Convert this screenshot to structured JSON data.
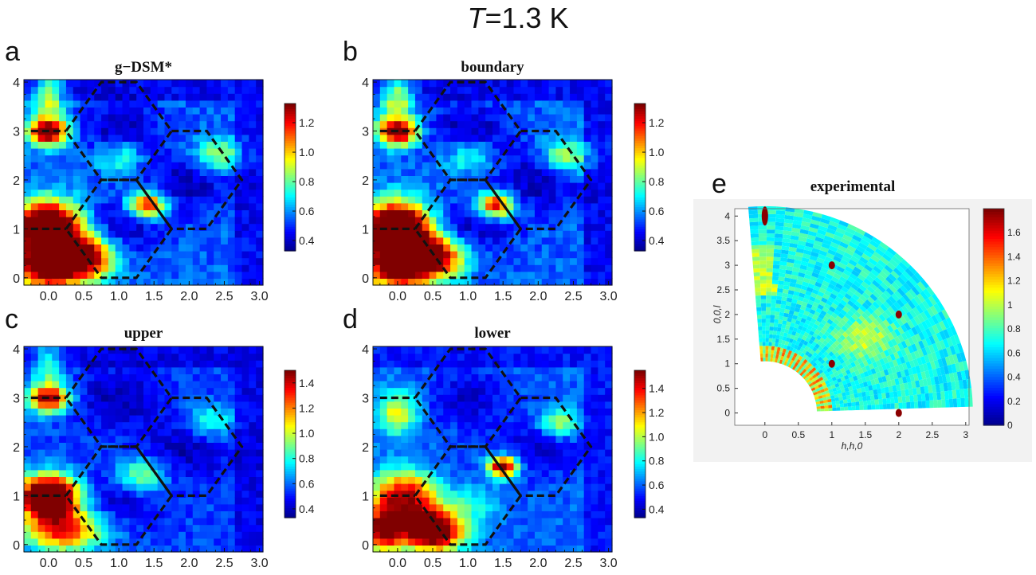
{
  "figure": {
    "title_italic": "T",
    "title_rest": "=1.3 K"
  },
  "colors": {
    "jet": [
      "#00008f",
      "#0000ff",
      "#0080ff",
      "#00ffff",
      "#80ff80",
      "#ffff00",
      "#ff8000",
      "#ff0000",
      "#800000"
    ],
    "hex_line": "#111111",
    "axis": "#111111"
  },
  "chart_data": [
    {
      "id": "a",
      "letter": "a",
      "title": "g−DSM*",
      "type": "heatmap",
      "xlim": [
        -0.35,
        3.05
      ],
      "ylim": [
        -0.15,
        4.05
      ],
      "xticks": [
        "0.0",
        "0.5",
        "1.0",
        "1.5",
        "2.0",
        "2.5",
        "3.0"
      ],
      "xtick_values": [
        0,
        0.5,
        1,
        1.5,
        2,
        2.5,
        3
      ],
      "yticks": [
        "0",
        "1",
        "2",
        "3",
        "4"
      ],
      "ytick_values": [
        0,
        1,
        2,
        3,
        4
      ],
      "colorbar": {
        "ticks": [
          "0.4",
          "0.6",
          "0.8",
          "1.0",
          "1.2"
        ],
        "tick_values": [
          0.4,
          0.6,
          0.8,
          1.0,
          1.2
        ],
        "range": [
          0.33,
          1.33
        ]
      },
      "peaks": [
        {
          "x": 0.0,
          "y": 1.0,
          "amp": 1.3,
          "sx": 0.32,
          "sy": 0.38
        },
        {
          "x": 0.0,
          "y": 0.2,
          "amp": 0.85,
          "sx": 0.35,
          "sy": 0.3
        },
        {
          "x": 0.55,
          "y": 0.45,
          "amp": 0.75,
          "sx": 0.3,
          "sy": 0.3
        },
        {
          "x": 0.0,
          "y": 3.0,
          "amp": 0.9,
          "sx": 0.2,
          "sy": 0.2
        },
        {
          "x": 1.4,
          "y": 1.5,
          "amp": 0.75,
          "sx": 0.18,
          "sy": 0.18
        },
        {
          "x": 2.4,
          "y": 2.5,
          "amp": 0.35,
          "sx": 0.25,
          "sy": 0.25
        },
        {
          "x": 0.0,
          "y": 3.7,
          "amp": 0.4,
          "sx": 0.15,
          "sy": 0.3
        },
        {
          "x": 1.0,
          "y": 2.5,
          "amp": 0.25,
          "sx": 0.25,
          "sy": 0.25
        }
      ],
      "baseline": 0.55
    },
    {
      "id": "b",
      "letter": "b",
      "title": "boundary",
      "type": "heatmap",
      "xlim": [
        -0.35,
        3.05
      ],
      "ylim": [
        -0.15,
        4.05
      ],
      "xticks": [
        "0.0",
        "0.5",
        "1.0",
        "1.5",
        "2.0",
        "2.5",
        "3.0"
      ],
      "xtick_values": [
        0,
        0.5,
        1,
        1.5,
        2,
        2.5,
        3
      ],
      "yticks": [
        "0",
        "1",
        "2",
        "3",
        "4"
      ],
      "ytick_values": [
        0,
        1,
        2,
        3,
        4
      ],
      "colorbar": {
        "ticks": [
          "0.4",
          "0.6",
          "0.8",
          "1.0",
          "1.2"
        ],
        "tick_values": [
          0.4,
          0.6,
          0.8,
          1.0,
          1.2
        ],
        "range": [
          0.33,
          1.33
        ]
      },
      "peaks": [
        {
          "x": 0.0,
          "y": 1.0,
          "amp": 1.3,
          "sx": 0.32,
          "sy": 0.38
        },
        {
          "x": 0.0,
          "y": 0.2,
          "amp": 0.85,
          "sx": 0.35,
          "sy": 0.3
        },
        {
          "x": 0.55,
          "y": 0.45,
          "amp": 0.75,
          "sx": 0.3,
          "sy": 0.3
        },
        {
          "x": 0.0,
          "y": 3.0,
          "amp": 0.9,
          "sx": 0.2,
          "sy": 0.2
        },
        {
          "x": 1.4,
          "y": 1.5,
          "amp": 0.75,
          "sx": 0.18,
          "sy": 0.18
        },
        {
          "x": 2.4,
          "y": 2.5,
          "amp": 0.35,
          "sx": 0.25,
          "sy": 0.25
        },
        {
          "x": 0.0,
          "y": 3.7,
          "amp": 0.4,
          "sx": 0.15,
          "sy": 0.3
        },
        {
          "x": 1.0,
          "y": 2.5,
          "amp": 0.25,
          "sx": 0.25,
          "sy": 0.25
        }
      ],
      "baseline": 0.55
    },
    {
      "id": "c",
      "letter": "c",
      "title": "upper",
      "type": "heatmap",
      "xlim": [
        -0.35,
        3.05
      ],
      "ylim": [
        -0.15,
        4.05
      ],
      "xticks": [
        "0.0",
        "0.5",
        "1.0",
        "1.5",
        "2.0",
        "2.5",
        "3.0"
      ],
      "xtick_values": [
        0,
        0.5,
        1,
        1.5,
        2,
        2.5,
        3
      ],
      "yticks": [
        "0",
        "1",
        "2",
        "3",
        "4"
      ],
      "ytick_values": [
        0,
        1,
        2,
        3,
        4
      ],
      "colorbar": {
        "ticks": [
          "0.4",
          "0.6",
          "0.8",
          "1.0",
          "1.2",
          "1.4"
        ],
        "tick_values": [
          0.4,
          0.6,
          0.8,
          1.0,
          1.2,
          1.4
        ],
        "range": [
          0.33,
          1.5
        ]
      },
      "peaks": [
        {
          "x": 0.0,
          "y": 1.0,
          "amp": 1.45,
          "sx": 0.3,
          "sy": 0.3
        },
        {
          "x": 0.2,
          "y": 0.3,
          "amp": 0.8,
          "sx": 0.4,
          "sy": 0.3
        },
        {
          "x": 0.0,
          "y": 3.0,
          "amp": 0.95,
          "sx": 0.2,
          "sy": 0.2
        },
        {
          "x": 1.3,
          "y": 1.4,
          "amp": 0.45,
          "sx": 0.25,
          "sy": 0.25
        },
        {
          "x": 2.3,
          "y": 2.5,
          "amp": 0.3,
          "sx": 0.25,
          "sy": 0.25
        },
        {
          "x": 0.0,
          "y": 3.7,
          "amp": 0.35,
          "sx": 0.15,
          "sy": 0.3
        }
      ],
      "baseline": 0.55
    },
    {
      "id": "d",
      "letter": "d",
      "title": "lower",
      "type": "heatmap",
      "xlim": [
        -0.35,
        3.05
      ],
      "ylim": [
        -0.15,
        4.05
      ],
      "xticks": [
        "0.0",
        "0.5",
        "1.0",
        "1.5",
        "2.0",
        "2.5",
        "3.0"
      ],
      "xtick_values": [
        0,
        0.5,
        1,
        1.5,
        2,
        2.5,
        3
      ],
      "yticks": [
        "0",
        "1",
        "2",
        "3",
        "4"
      ],
      "ytick_values": [
        0,
        1,
        2,
        3,
        4
      ],
      "colorbar": {
        "ticks": [
          "0.4",
          "0.6",
          "0.8",
          "1.0",
          "1.2",
          "1.4"
        ],
        "tick_values": [
          0.4,
          0.6,
          0.8,
          1.0,
          1.2,
          1.4
        ],
        "range": [
          0.33,
          1.55
        ]
      },
      "peaks": [
        {
          "x": 0.5,
          "y": 0.3,
          "amp": 1.3,
          "sx": 0.3,
          "sy": 0.3
        },
        {
          "x": -0.2,
          "y": 0.3,
          "amp": 1.0,
          "sx": 0.2,
          "sy": 0.3
        },
        {
          "x": 0.1,
          "y": 1.0,
          "amp": 0.9,
          "sx": 0.35,
          "sy": 0.35
        },
        {
          "x": 1.5,
          "y": 1.6,
          "amp": 1.1,
          "sx": 0.15,
          "sy": 0.15
        },
        {
          "x": 0.0,
          "y": 2.7,
          "amp": 0.5,
          "sx": 0.2,
          "sy": 0.3
        },
        {
          "x": 2.3,
          "y": 2.5,
          "amp": 0.45,
          "sx": 0.2,
          "sy": 0.2
        },
        {
          "x": 1.1,
          "y": 0.9,
          "amp": 0.35,
          "sx": 0.3,
          "sy": 0.3
        }
      ],
      "baseline": 0.6
    },
    {
      "id": "e",
      "letter": "e",
      "title": "experimental",
      "type": "heatmap",
      "xlabel": "h,h,0",
      "ylabel": "0,0,l",
      "xlim": [
        -0.45,
        3.05
      ],
      "ylim": [
        -0.25,
        4.15
      ],
      "xticks": [
        "0",
        "0.5",
        "1",
        "1.5",
        "2",
        "2.5",
        "3"
      ],
      "xtick_values": [
        0,
        0.5,
        1,
        1.5,
        2,
        2.5,
        3
      ],
      "yticks": [
        "0",
        "0.5",
        "1",
        "1.5",
        "2",
        "2.5",
        "3",
        "3.5",
        "4"
      ],
      "ytick_values": [
        0,
        0.5,
        1,
        1.5,
        2,
        2.5,
        3,
        3.5,
        4
      ],
      "colorbar": {
        "ticks": [
          "0",
          "0.2",
          "0.4",
          "0.6",
          "0.8",
          "1",
          "1.2",
          "1.4",
          "1.6"
        ],
        "tick_values": [
          0,
          0.2,
          0.4,
          0.6,
          0.8,
          1,
          1.2,
          1.4,
          1.6
        ],
        "range": [
          0,
          1.8
        ]
      },
      "bragg_peaks": [
        {
          "x": 0.0,
          "y": 4.0
        },
        {
          "x": 1.0,
          "y": 3.0
        },
        {
          "x": 2.0,
          "y": 2.0
        },
        {
          "x": 1.0,
          "y": 1.0
        },
        {
          "x": 2.0,
          "y": 0.0
        }
      ],
      "diffuse_peak": {
        "x": 1.5,
        "y": 1.5,
        "amp": 0.35
      },
      "baseline": 0.7
    }
  ]
}
